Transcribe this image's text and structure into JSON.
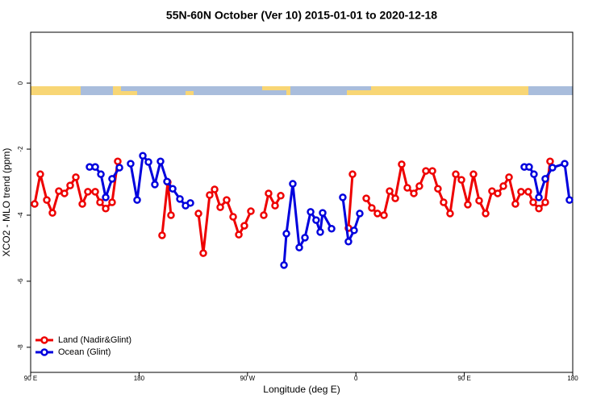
{
  "chart_data": {
    "type": "line",
    "title": "55N-60N October (Ver 10)   2015-01-01 to 2020-12-18",
    "x_label": "Longitude (deg E)",
    "y_label": "XCO2 - MLO trend (ppm)",
    "xlim": [
      90,
      540
    ],
    "ylim": [
      -8.76,
      1.54
    ],
    "xticks": [
      {
        "value": 90,
        "label": "90 E"
      },
      {
        "value": 180,
        "label": "180"
      },
      {
        "value": 270,
        "label": "90 W"
      },
      {
        "value": 360,
        "label": "0"
      },
      {
        "value": 450,
        "label": "90 E"
      },
      {
        "value": 540,
        "label": "180"
      }
    ],
    "yticks": [
      -8,
      -6,
      -4,
      -2,
      0
    ],
    "legend": "lower left",
    "series": [
      {
        "name": "Land (Nadir&Glint)",
        "color": "#ee0000",
        "x": [
          93.3,
          98.0,
          103.4,
          108.1,
          113.4,
          118.1,
          122.8,
          127.5,
          132.9,
          137.5,
          143.6,
          147.6,
          152.3,
          157.6,
          162.3,
          null,
          199.1,
          203.8,
          206.5,
          null,
          229.3,
          233.3,
          238.6,
          242.7,
          247.4,
          252.7,
          258.1,
          262.8,
          267.4,
          272.8,
          null,
          283.5,
          287.5,
          292.9,
          297.6,
          null,
          353.8,
          357.2,
          null,
          368.6,
          373.2,
          377.9,
          383.3,
          388.0,
          392.7,
          398.0,
          402.7,
          408.1,
          412.7,
          418.1,
          423.5,
          428.1,
          432.8,
          438.2,
          442.9,
          447.6,
          452.9,
          457.6,
          462.3,
          467.7,
          473.0,
          477.7,
          482.4,
          487.1,
          492.4,
          497.1,
          503.1,
          507.2,
          511.9,
          517.2,
          521.2
        ],
        "values": [
          -3.66,
          -2.76,
          -3.54,
          -3.93,
          -3.27,
          -3.34,
          -3.1,
          -2.85,
          -3.66,
          -3.29,
          -3.29,
          -3.61,
          -3.8,
          -3.61,
          -2.37,
          null,
          -4.61,
          -3.0,
          -4.0,
          null,
          -3.95,
          -5.15,
          -3.39,
          -3.22,
          -3.76,
          -3.54,
          -4.05,
          -4.59,
          -4.32,
          -3.88,
          null,
          -4.0,
          -3.34,
          -3.71,
          -3.41,
          null,
          -4.39,
          -2.76,
          null,
          -3.49,
          -3.78,
          -3.95,
          -4.0,
          -3.27,
          -3.49,
          -2.46,
          -3.17,
          -3.34,
          -3.12,
          -2.66,
          -2.66,
          -3.2,
          -3.61,
          -3.95,
          -2.76,
          -2.93,
          -3.68,
          -2.76,
          -3.56,
          -3.95,
          -3.27,
          -3.34,
          -3.12,
          -2.85,
          -3.66,
          -3.29,
          -3.29,
          -3.61,
          -3.8,
          -3.61,
          -2.37
        ]
      },
      {
        "name": "Ocean (Glint)",
        "color": "#0000dd",
        "x": [
          138.9,
          143.6,
          148.3,
          152.3,
          157.6,
          163.7,
          null,
          173.0,
          178.4,
          183.1,
          187.8,
          193.1,
          197.8,
          203.2,
          207.9,
          213.9,
          218.6,
          222.6,
          null,
          300.3,
          302.3,
          307.6,
          313.0,
          317.7,
          322.4,
          327.0,
          330.4,
          332.4,
          339.8,
          null,
          349.1,
          353.8,
          358.5,
          363.2,
          null,
          499.8,
          503.8,
          507.8,
          511.9,
          517.2,
          523.2,
          533.3,
          537.3
        ],
        "values": [
          -2.54,
          -2.54,
          -2.76,
          -3.46,
          -2.9,
          -2.56,
          null,
          -2.44,
          -3.54,
          -2.2,
          -2.39,
          -3.07,
          -2.37,
          -2.98,
          -3.2,
          -3.51,
          -3.71,
          -3.63,
          null,
          -5.51,
          -4.56,
          -3.05,
          -4.98,
          -4.68,
          -3.9,
          -4.15,
          -4.51,
          -3.93,
          -4.41,
          null,
          -3.46,
          -4.8,
          -4.46,
          -3.95,
          null,
          -2.54,
          -2.54,
          -2.76,
          -3.46,
          -2.9,
          -2.56,
          -2.44,
          -3.54
        ]
      }
    ]
  }
}
